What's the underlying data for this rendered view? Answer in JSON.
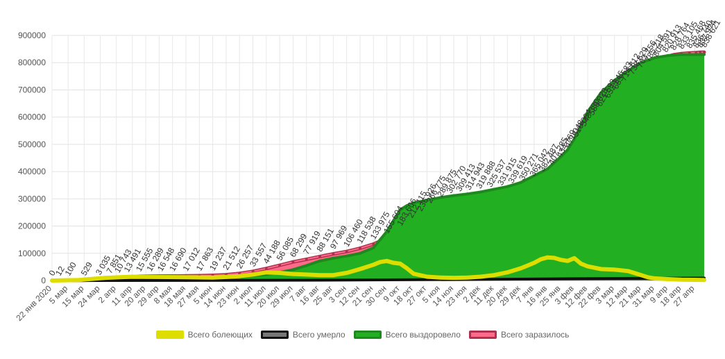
{
  "chart_data": {
    "type": "area",
    "ylim": [
      0,
      900000
    ],
    "yticks": [
      "0",
      "100000",
      "200000",
      "300000",
      "400000",
      "500000",
      "600000",
      "700000",
      "800000",
      "900000"
    ],
    "x_tick_labels": [
      "22 янв 2020",
      "5 мар",
      "15 мар",
      "24 мар",
      "2 апр",
      "11 апр",
      "20 апр",
      "29 апр",
      "8 мая",
      "18 мая",
      "27 мая",
      "5 июн",
      "14 июн",
      "23 июн",
      "2 июл",
      "11 июл",
      "20 июл",
      "29 июл",
      "7 авг",
      "16 авг",
      "25 авг",
      "3 сен",
      "12 сен",
      "21 сен",
      "30 сен",
      "9 окт",
      "18 окт",
      "27 окт",
      "5 ноя",
      "14 ноя",
      "23 ноя",
      "2 дек",
      "11 дек",
      "20 дек",
      "29 дек",
      "7 янв",
      "16 янв",
      "25 янв",
      "3 фев",
      "12 фев",
      "22 фев",
      "3 мар",
      "12 мар",
      "21 мар",
      "31 мар",
      "9 апр",
      "18 апр",
      "27 апр"
    ],
    "x_tick_positions": [
      0,
      1.2,
      2.4,
      3.6,
      4.8,
      6,
      7,
      8,
      9,
      10,
      11,
      12,
      13,
      14,
      15,
      16,
      17,
      18,
      19,
      20,
      21,
      22,
      23,
      24,
      25,
      26,
      27,
      28,
      29,
      30,
      31,
      32,
      33,
      34,
      35,
      36,
      37,
      38,
      39,
      40,
      41,
      42,
      43,
      44,
      45,
      46,
      47,
      48
    ],
    "x_max": 48.7,
    "data_labels": [
      "0",
      "12",
      "100",
      "529",
      "3 035",
      "7 851",
      "10 743",
      "13 491",
      "15 555",
      "16 289",
      "16 548",
      "16 690",
      "17 012",
      "17 863",
      "19 237",
      "21 512",
      "26 257",
      "33 557",
      "44 188",
      "56 085",
      "68 299",
      "77 919",
      "88 151",
      "97 969",
      "106 460",
      "118 538",
      "133 975",
      "155 604",
      "183 606",
      "212 115",
      "236 926",
      "266 775",
      "289 875",
      "302 770",
      "309 413",
      "314 943",
      "319 888",
      "325 537",
      "331 915",
      "339 619",
      "350 271",
      "365 042",
      "382 487",
      "407 285",
      "434 769",
      "471 048",
      "510 064",
      "548 330",
      "589 028",
      "621 593",
      "652 246",
      "685 583",
      "714 812",
      "738 629",
      "763 756",
      "785 218",
      "804 591",
      "820 913",
      "828 764",
      "833 105",
      "835 468",
      "836 740",
      "837 974",
      "838 621"
    ],
    "data_label_positions": [
      0,
      0.5,
      1.2,
      2.4,
      3.5,
      4.3,
      4.9,
      5.6,
      6.5,
      7.3,
      8.1,
      9,
      10,
      11,
      12,
      13,
      14,
      15,
      16,
      17,
      18,
      19,
      20,
      21,
      22,
      23,
      24,
      25,
      26,
      26.8,
      27.5,
      28.2,
      29,
      29.7,
      30.4,
      31.1,
      31.9,
      32.7,
      33.5,
      34.3,
      35.1,
      35.9,
      36.6,
      37.3,
      37.9,
      38.5,
      39.1,
      39.7,
      40.3,
      40.9,
      41.5,
      42.1,
      42.7,
      43.3,
      43.9,
      44.5,
      45.1,
      45.8,
      46.4,
      47,
      47.6,
      48.1,
      48.4,
      48.7
    ],
    "series": [
      {
        "name": "Всего болеющих",
        "color": "#dddd00",
        "border": "#dddd00",
        "x": [
          0,
          2,
          4,
          6,
          8,
          10,
          12,
          13,
          14,
          15,
          16,
          17,
          18,
          19,
          20,
          21,
          22,
          23,
          24,
          24.5,
          25,
          25.5,
          26,
          26.5,
          27,
          28,
          29,
          30,
          31,
          32,
          33,
          34,
          35,
          36,
          36.5,
          37,
          37.5,
          38,
          38.5,
          39,
          39.5,
          40,
          41,
          42,
          43,
          44,
          44.5,
          45,
          46,
          47,
          48,
          48.7
        ],
        "y": [
          0,
          2000,
          10000,
          14000,
          13000,
          12000,
          11000,
          13000,
          16000,
          22000,
          30000,
          28000,
          24000,
          22000,
          20000,
          20000,
          28000,
          42000,
          58000,
          68000,
          72000,
          65000,
          62000,
          45000,
          25000,
          14000,
          11000,
          10000,
          11000,
          14000,
          20000,
          30000,
          45000,
          65000,
          78000,
          85000,
          83000,
          76000,
          72000,
          82000,
          62000,
          52000,
          42000,
          40000,
          35000,
          20000,
          12000,
          8000,
          5000,
          3000,
          2500,
          2000
        ]
      },
      {
        "name": "Всего умерло",
        "color": "#777777",
        "border": "#111111",
        "x": [
          0,
          10,
          20,
          30,
          40,
          45,
          48.7
        ],
        "y": [
          0,
          300,
          1200,
          3500,
          7000,
          8500,
          9000
        ]
      },
      {
        "name": "Всего выздоровело",
        "color": "#22b022",
        "border": "#1e8a1e",
        "x": [
          0,
          2,
          4,
          6,
          8,
          10,
          12,
          14,
          15,
          16,
          17,
          18,
          19,
          20,
          21,
          22,
          23,
          24,
          24.5,
          25,
          25.5,
          26,
          26.5,
          27,
          28,
          29,
          30,
          31,
          32,
          33,
          34,
          35,
          36,
          37,
          38,
          38.5,
          39,
          39.5,
          40,
          41,
          42,
          43,
          44,
          45,
          46,
          47,
          48,
          48.7
        ],
        "y": [
          0,
          0,
          0,
          2000,
          4000,
          6000,
          8000,
          12000,
          18000,
          22000,
          30000,
          40000,
          55000,
          72000,
          82000,
          90000,
          100000,
          120000,
          150000,
          180000,
          220000,
          260000,
          275000,
          285000,
          295000,
          305000,
          312000,
          318000,
          325000,
          335000,
          345000,
          360000,
          385000,
          410000,
          455000,
          480000,
          520000,
          570000,
          620000,
          690000,
          735000,
          770000,
          800000,
          818000,
          826000,
          830000,
          830000,
          830000
        ]
      },
      {
        "name": "Всего заразилось",
        "color": "#ff6b8a",
        "border": "#b03050",
        "x": [
          0,
          0.5,
          1.2,
          2.4,
          3.5,
          4.3,
          4.9,
          5.6,
          6.5,
          7.3,
          8.1,
          9,
          10,
          11,
          12,
          13,
          14,
          15,
          16,
          17,
          18,
          19,
          20,
          21,
          22,
          23,
          24,
          25,
          26,
          26.8,
          27.5,
          28.2,
          29,
          29.7,
          30.4,
          31.1,
          31.9,
          32.7,
          33.5,
          34.3,
          35.1,
          35.9,
          36.6,
          37.3,
          37.9,
          38.5,
          39.1,
          39.7,
          40.3,
          40.9,
          41.5,
          42.1,
          42.7,
          43.3,
          43.9,
          44.5,
          45.1,
          45.8,
          46.4,
          47,
          47.6,
          48.1,
          48.4,
          48.7
        ],
        "y": [
          0,
          12,
          100,
          529,
          3035,
          7851,
          10743,
          13491,
          15555,
          16289,
          16548,
          16690,
          17012,
          17863,
          19237,
          21512,
          26257,
          33557,
          44188,
          56085,
          68299,
          77919,
          88151,
          97969,
          106460,
          118538,
          133975,
          155604,
          183606,
          212115,
          236926,
          266775,
          289875,
          302770,
          309413,
          314943,
          319888,
          325537,
          331915,
          339619,
          350271,
          365042,
          382487,
          407285,
          434769,
          471048,
          510064,
          548330,
          589028,
          621593,
          652246,
          685583,
          714812,
          738629,
          763756,
          785218,
          804591,
          820913,
          828764,
          833105,
          835468,
          836740,
          837974,
          838621
        ]
      }
    ],
    "legend_position": "bottom",
    "grid": true
  }
}
